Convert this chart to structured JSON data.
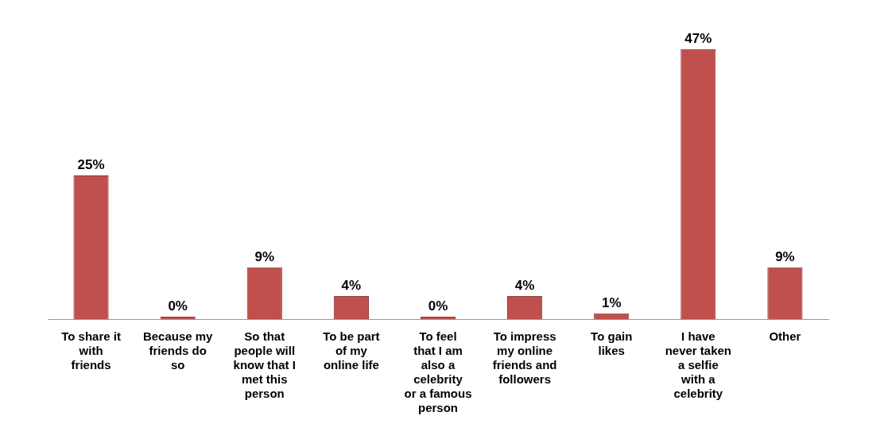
{
  "chart_data": {
    "type": "bar",
    "categories": [
      "To share it with friends",
      "Because my friends do so",
      "So that people will know that I met this person",
      "To be part of my online life",
      "To feel that I am also a celebrity or a famous person",
      "To impress my online friends and followers",
      "To gain likes",
      "I have never taken a selfie with a celebrity",
      "Other"
    ],
    "values": [
      25,
      0,
      9,
      4,
      0,
      4,
      1,
      47,
      9
    ],
    "value_labels": [
      "25%",
      "0%",
      "9%",
      "4%",
      "0%",
      "4%",
      "1%",
      "47%",
      "9%"
    ],
    "color": "#c0504d"
  }
}
